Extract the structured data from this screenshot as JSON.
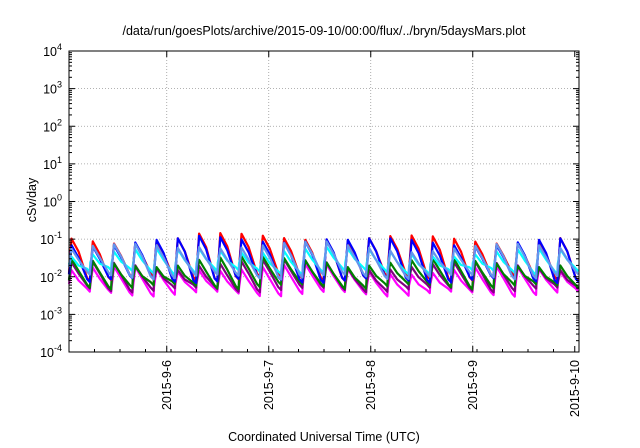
{
  "chart_data": {
    "type": "line",
    "title": "/data/run/goesPlots/archive/2015-09-10/00:00/flux/../bryn/5daysMars.plot",
    "xlabel": "Coordinated Universal Time (UTC)",
    "ylabel": "cSv/day",
    "yscale": "log",
    "ylim": [
      0.0001,
      10000
    ],
    "xlim": [
      "2015-09-05T01:00",
      "2015-09-10T01:00"
    ],
    "grid": true,
    "y_ticks": [
      {
        "base": "10",
        "exp": "-4",
        "value": 0.0001
      },
      {
        "base": "10",
        "exp": "-3",
        "value": 0.001
      },
      {
        "base": "10",
        "exp": "-2",
        "value": 0.01
      },
      {
        "base": "10",
        "exp": "-1",
        "value": 0.1
      },
      {
        "base": "10",
        "exp": "0",
        "value": 1
      },
      {
        "base": "10",
        "exp": "1",
        "value": 10
      },
      {
        "base": "10",
        "exp": "2",
        "value": 100
      },
      {
        "base": "10",
        "exp": "3",
        "value": 1000
      },
      {
        "base": "10",
        "exp": "4",
        "value": 10000
      }
    ],
    "x_ticks": [
      {
        "label": "2015-9-6",
        "value": "2015-09-06T00:00"
      },
      {
        "label": "2015-9-7",
        "value": "2015-09-07T00:00"
      },
      {
        "label": "2015-9-8",
        "value": "2015-09-08T00:00"
      },
      {
        "label": "2015-9-9",
        "value": "2015-09-09T00:00"
      },
      {
        "label": "2015-9-10",
        "value": "2015-09-10T00:00"
      }
    ],
    "series": [
      {
        "color": "#ff00ff",
        "low": 0.0035,
        "high": 0.015
      },
      {
        "color": "#800080",
        "low": 0.0045,
        "high": 0.02
      },
      {
        "color": "#008000",
        "low": 0.0055,
        "high": 0.024
      },
      {
        "color": "#ff0000",
        "low": 0.009,
        "high": 0.1
      },
      {
        "color": "#0000ff",
        "low": 0.008,
        "high": 0.085
      },
      {
        "color": "#00ffff",
        "low": 0.013,
        "high": 0.045
      },
      {
        "color": "#6495ed",
        "low": 0.01,
        "high": 0.06
      }
    ]
  }
}
